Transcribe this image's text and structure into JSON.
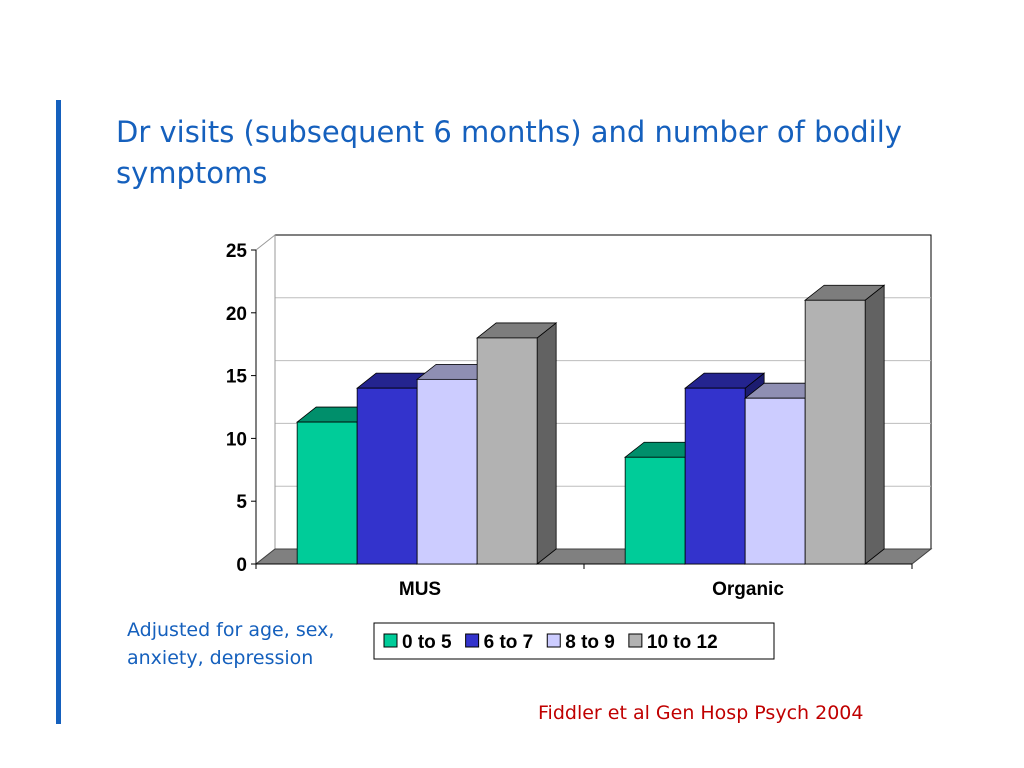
{
  "slide": {
    "title": "Dr visits (subsequent 6 months) and number of bodily symptoms",
    "note": "Adjusted for age, sex, anxiety, depression",
    "citation": "Fiddler et al Gen Hosp Psych 2004",
    "accent_color": "#1560bd",
    "citation_color": "#c00000"
  },
  "chart_data": {
    "type": "bar",
    "style": "3d-clustered",
    "title": "",
    "xlabel": "",
    "ylabel": "",
    "categories": [
      "MUS",
      "Organic"
    ],
    "series": [
      {
        "name": "0 to 5",
        "values": [
          11.3,
          8.5
        ],
        "color": "#00cc99"
      },
      {
        "name": "6 to 7",
        "values": [
          14.0,
          14.0
        ],
        "color": "#3333cc"
      },
      {
        "name": "8 to 9",
        "values": [
          14.7,
          13.2
        ],
        "color": "#ccccff"
      },
      {
        "name": "10 to 12",
        "values": [
          18.0,
          21.0
        ],
        "color": "#b2b2b2"
      }
    ],
    "ylim": [
      0,
      25
    ],
    "yticks": [
      0,
      5,
      10,
      15,
      20,
      25
    ],
    "grid": true,
    "legend_position": "bottom"
  }
}
